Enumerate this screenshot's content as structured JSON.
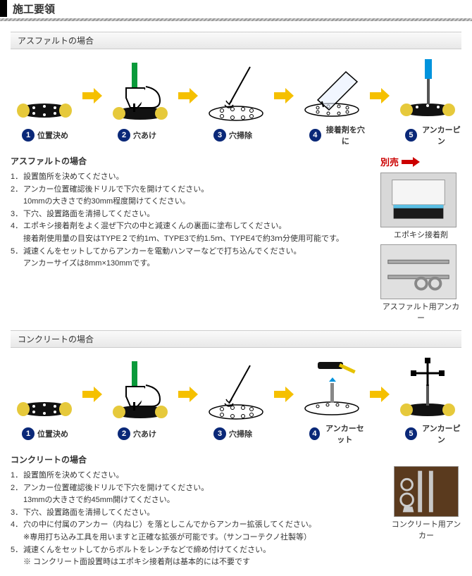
{
  "title": "施工要領",
  "asphalt": {
    "section_title": "アスファルトの場合",
    "steps": [
      {
        "n": "1",
        "label": "位置決め"
      },
      {
        "n": "2",
        "label": "穴あけ"
      },
      {
        "n": "3",
        "label": "穴掃除"
      },
      {
        "n": "4",
        "label": "接着剤を穴に"
      },
      {
        "n": "5",
        "label": "アンカーピン"
      }
    ],
    "subtitle": "アスファルトの場合",
    "instructions": [
      {
        "n": "1．",
        "t": "設置箇所を決めてください。"
      },
      {
        "n": "2．",
        "t": "アンカー位置確認後ドリルで下穴を開けてください。\n10mmの大きさで約30mm程度開けてください。"
      },
      {
        "n": "3．",
        "t": "下穴、設置路面を清掃してください。"
      },
      {
        "n": "4．",
        "t": "エポキシ接着剤をよく混ぜ下穴の中と減速くんの裏面に塗布してください。\n接着剤使用量の目安はTYPE２で約1ｍ、TYPE3で約1.5ｍ、TYPE4で約3ｍ分使用可能です。"
      },
      {
        "n": "5．",
        "t": "減速くんをセットしてからアンカーを電動ハンマーなどで打ち込んでください。\nアンカーサイズは8mm×130mmです。"
      }
    ],
    "side_label": "別売",
    "side": [
      {
        "cap": "エポキシ接着剤"
      },
      {
        "cap": "アスファルト用アンカー"
      }
    ]
  },
  "concrete": {
    "section_title": "コンクリートの場合",
    "steps": [
      {
        "n": "1",
        "label": "位置決め"
      },
      {
        "n": "2",
        "label": "穴あけ"
      },
      {
        "n": "3",
        "label": "穴掃除"
      },
      {
        "n": "4",
        "label": "アンカーセット"
      },
      {
        "n": "5",
        "label": "アンカーピン"
      }
    ],
    "subtitle": "コンクリートの場合",
    "instructions": [
      {
        "n": "1．",
        "t": "設置箇所を決めてください。"
      },
      {
        "n": "2．",
        "t": "アンカー位置確認後ドリルで下穴を開けてください。\n13mmの大きさで約45mm開けてください。"
      },
      {
        "n": "3．",
        "t": "下穴、設置路面を清掃してください。"
      },
      {
        "n": "4．",
        "t": "穴の中に付属のアンカー（内ねじ）を落としこんでからアンカー拡張してください。\n※専用打ち込み工具を用いますと正確な拡張が可能です。（サンコーテクノ社製等）"
      },
      {
        "n": "5．",
        "t": "減速くんをセットしてからボルトをレンチなどで締め付けてください。\n※ コンクリート面設置時はエポキシ接着剤は基本的には不要です"
      }
    ],
    "side": [
      {
        "cap": "コンクリート用アンカー"
      }
    ]
  },
  "colors": {
    "arrow": "#f5c000",
    "num_bg": "#0a2878",
    "bump_dark": "#111111",
    "bump_yellow": "#e6c93b",
    "drill_green": "#0a9a3a",
    "drill_blue": "#0093dd",
    "hammer_yellow": "#e6c200"
  }
}
